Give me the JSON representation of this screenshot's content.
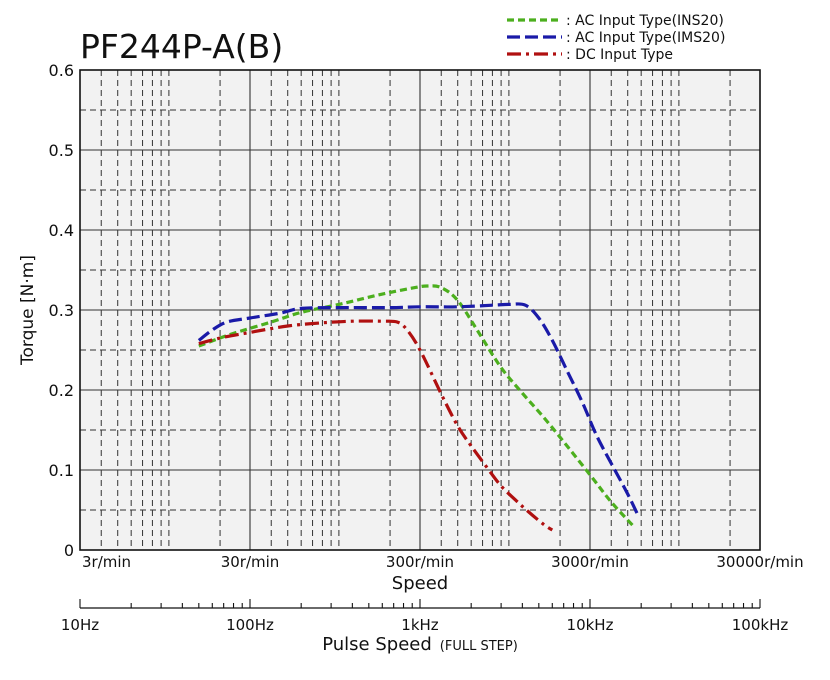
{
  "chart_data": {
    "type": "line",
    "title": "PF244P-A(B)",
    "xlabel": "Speed",
    "ylabel": "Torque [N·m]",
    "x_scale": "log",
    "x_unit": "r/min",
    "xlim": [
      3,
      30000
    ],
    "ylim": [
      0,
      0.6
    ],
    "x_ticks": [
      {
        "value": 3,
        "label": "3r/min"
      },
      {
        "value": 30,
        "label": "30r/min"
      },
      {
        "value": 300,
        "label": "300r/min"
      },
      {
        "value": 3000,
        "label": "3000r/min"
      },
      {
        "value": 30000,
        "label": "30000r/min"
      }
    ],
    "y_ticks": [
      {
        "value": 0,
        "label": "0"
      },
      {
        "value": 0.1,
        "label": "0.1"
      },
      {
        "value": 0.2,
        "label": "0.2"
      },
      {
        "value": 0.3,
        "label": "0.3"
      },
      {
        "value": 0.4,
        "label": "0.4"
      },
      {
        "value": 0.5,
        "label": "0.5"
      },
      {
        "value": 0.6,
        "label": "0.6"
      }
    ],
    "secondary_axis": {
      "label": "Pulse Speed",
      "label_suffix": "(FULL STEP)",
      "x_scale": "log",
      "x_unit": "Hz",
      "xlim": [
        10,
        100000
      ],
      "ticks": [
        {
          "value": 10,
          "label": "10Hz"
        },
        {
          "value": 100,
          "label": "100Hz"
        },
        {
          "value": 1000,
          "label": "1kHz"
        },
        {
          "value": 10000,
          "label": "10kHz"
        },
        {
          "value": 100000,
          "label": "100kHz"
        }
      ]
    },
    "grid": true,
    "legend_position": "top-right",
    "series": [
      {
        "name": ": AC Input Type(INS20)",
        "color": "#4caf1e",
        "dash": "dash-short",
        "points": [
          [
            15,
            0.255
          ],
          [
            20,
            0.265
          ],
          [
            25,
            0.272
          ],
          [
            40,
            0.285
          ],
          [
            60,
            0.297
          ],
          [
            100,
            0.307
          ],
          [
            150,
            0.316
          ],
          [
            200,
            0.322
          ],
          [
            280,
            0.328
          ],
          [
            330,
            0.33
          ],
          [
            400,
            0.328
          ],
          [
            500,
            0.312
          ],
          [
            650,
            0.275
          ],
          [
            900,
            0.228
          ],
          [
            1200,
            0.196
          ],
          [
            1600,
            0.166
          ],
          [
            2200,
            0.13
          ],
          [
            3000,
            0.094
          ],
          [
            4000,
            0.06
          ],
          [
            5500,
            0.028
          ]
        ]
      },
      {
        "name": ": AC Input Type(IMS20)",
        "color": "#1a1aa8",
        "dash": "dash-long",
        "points": [
          [
            15,
            0.262
          ],
          [
            18,
            0.275
          ],
          [
            22,
            0.285
          ],
          [
            30,
            0.29
          ],
          [
            45,
            0.296
          ],
          [
            60,
            0.302
          ],
          [
            100,
            0.303
          ],
          [
            200,
            0.303
          ],
          [
            300,
            0.304
          ],
          [
            500,
            0.304
          ],
          [
            800,
            0.306
          ],
          [
            1000,
            0.307
          ],
          [
            1250,
            0.306
          ],
          [
            1500,
            0.29
          ],
          [
            1800,
            0.262
          ],
          [
            2200,
            0.224
          ],
          [
            2700,
            0.185
          ],
          [
            3300,
            0.142
          ],
          [
            4200,
            0.1
          ],
          [
            5000,
            0.07
          ],
          [
            5700,
            0.045
          ]
        ]
      },
      {
        "name": ": DC Input Type",
        "color": "#b01010",
        "dash": "dash-dot",
        "points": [
          [
            15,
            0.258
          ],
          [
            20,
            0.265
          ],
          [
            30,
            0.272
          ],
          [
            50,
            0.28
          ],
          [
            80,
            0.284
          ],
          [
            120,
            0.286
          ],
          [
            180,
            0.286
          ],
          [
            220,
            0.285
          ],
          [
            250,
            0.276
          ],
          [
            300,
            0.25
          ],
          [
            400,
            0.195
          ],
          [
            500,
            0.155
          ],
          [
            600,
            0.13
          ],
          [
            750,
            0.102
          ],
          [
            900,
            0.08
          ],
          [
            1100,
            0.062
          ],
          [
            1300,
            0.048
          ],
          [
            1600,
            0.032
          ],
          [
            1800,
            0.025
          ]
        ]
      }
    ]
  }
}
